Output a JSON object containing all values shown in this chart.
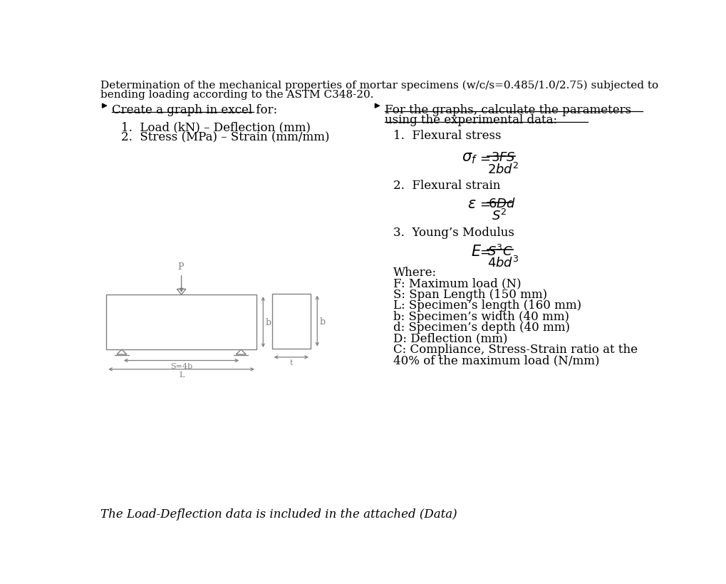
{
  "title_line1": "Determination of the mechanical properties of mortar specimens (w/c/s=0.485/1.0/2.75) subjected to",
  "title_line2": "bending loading according to the ASTM C348-20.",
  "left_header": "Create a graph in excel for:",
  "left_items": [
    "Load (kN) – Deflection (mm)",
    "Stress (MPa) – Strain (mm/mm)"
  ],
  "right_header": "For the graphs, calculate the parameters",
  "right_header2": "using the experimental data:",
  "right_items": [
    "Flexural stress",
    "Flexural strain",
    "Young’s Modulus"
  ],
  "where_text": "Where:",
  "params": [
    "F: Maximum load (N)",
    "S: Span Length (150 mm)",
    "L: Specimen’s length (160 mm)",
    "b: Specimen’s width (40 mm)",
    "d: Specimen’s depth (40 mm)",
    "D: Deflection (mm)",
    "C: Compliance, Stress-Strain ratio at the",
    "40% of the maximum load (N/mm)"
  ],
  "footer": "The Load-Deflection data is included in the attached (Data)",
  "bg_color": "#ffffff",
  "text_color": "#000000",
  "diagram_color": "#808080"
}
